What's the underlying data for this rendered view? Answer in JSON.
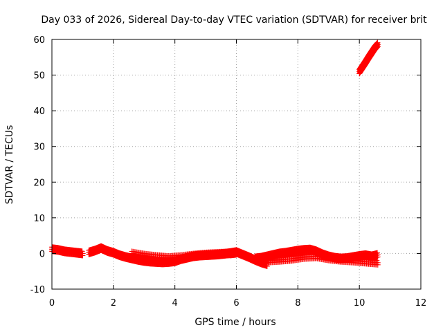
{
  "chart_data": {
    "type": "scatter",
    "title": "Day 033 of 2026, Sidereal Day-to-day VTEC variation (SDTVAR) for receiver brit",
    "xlabel": "GPS time / hours",
    "ylabel": "SDTVAR / TECUs",
    "xlim": [
      0,
      12
    ],
    "ylim": [
      -10,
      60
    ],
    "xticks": [
      "0",
      "2",
      "4",
      "6",
      "8",
      "10",
      "12"
    ],
    "yticks": [
      "-10",
      "0",
      "10",
      "20",
      "30",
      "40",
      "50",
      "60"
    ],
    "grid": true,
    "marker": "+",
    "color": "#ff0000",
    "series": [
      {
        "segments": [
          {
            "x": [
              0.0,
              0.2,
              0.4,
              0.6,
              0.8,
              1.0
            ],
            "y": [
              1.2,
              1.0,
              0.6,
              0.4,
              0.2,
              0.0
            ]
          },
          {
            "x": [
              1.2,
              1.4,
              1.6,
              1.8,
              2.0,
              2.2,
              2.4,
              2.6,
              2.8,
              3.0,
              3.2,
              3.4,
              3.6,
              3.8,
              4.0,
              4.2,
              4.4,
              4.6,
              4.8,
              5.0,
              5.2,
              5.4,
              5.6,
              5.8,
              6.0,
              6.2,
              6.4,
              6.6,
              6.8,
              7.0
            ],
            "y": [
              0.3,
              0.8,
              1.5,
              0.7,
              0.2,
              -0.5,
              -1.0,
              -1.4,
              -1.8,
              -2.1,
              -2.3,
              -2.4,
              -2.5,
              -2.4,
              -2.2,
              -1.6,
              -1.2,
              -0.8,
              -0.6,
              -0.5,
              -0.4,
              -0.3,
              -0.1,
              0.1,
              0.4,
              -0.3,
              -1.0,
              -1.8,
              -2.5,
              -3.0
            ]
          },
          {
            "x": [
              2.6,
              3.0,
              3.4,
              3.8,
              4.2,
              4.6,
              5.0,
              5.4,
              5.8,
              6.0
            ],
            "y": [
              0.0,
              -0.6,
              -1.0,
              -1.3,
              -1.0,
              -0.6,
              -0.3,
              -0.1,
              0.0,
              0.2
            ]
          },
          {
            "x": [
              6.6,
              6.8,
              7.0,
              7.2,
              7.4,
              7.6,
              7.8,
              8.0,
              8.2,
              8.4,
              8.6,
              8.8,
              9.0,
              9.2,
              9.4,
              9.6,
              9.8,
              10.0,
              10.2,
              10.4,
              10.6
            ],
            "y": [
              -1.4,
              -1.2,
              -0.8,
              -0.4,
              0.0,
              0.2,
              0.5,
              0.8,
              1.0,
              1.1,
              0.6,
              -0.2,
              -0.8,
              -1.2,
              -1.4,
              -1.3,
              -1.0,
              -0.7,
              -0.5,
              -0.8,
              -0.4
            ]
          },
          {
            "x": [
              7.0,
              7.4,
              7.8,
              8.2,
              8.6,
              9.0,
              9.4,
              9.8,
              10.2,
              10.6
            ],
            "y": [
              -2.0,
              -1.8,
              -1.5,
              -1.0,
              -0.8,
              -1.4,
              -1.8,
              -2.0,
              -2.3,
              -2.6
            ]
          },
          {
            "x": [
              10.0,
              10.1,
              10.2,
              10.3,
              10.4,
              10.5,
              10.6
            ],
            "y": [
              51.0,
              52.3,
              53.6,
              55.0,
              56.3,
              57.6,
              58.6
            ]
          }
        ]
      }
    ]
  }
}
